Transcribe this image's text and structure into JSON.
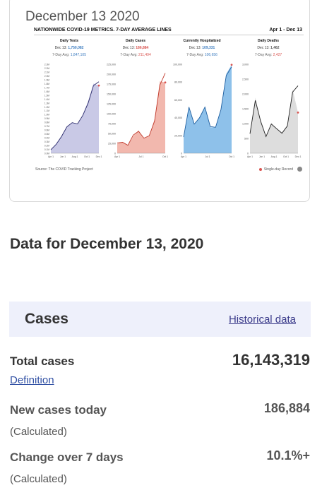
{
  "card": {
    "date_label": "December 13 2020",
    "figure": {
      "title": "NATIONWIDE COVID-19 METRICS. 7-DAY AVERAGE LINES",
      "range": "Apr 1 - Dec 13",
      "source": "Source: The COVID Tracking Project",
      "legend": "Single-day Record",
      "colors": {
        "tests": "#c9c9e6",
        "cases": "#f2b8ae",
        "hosp": "#8ec1ea",
        "deaths": "#dddddd",
        "record": "#d9534f"
      },
      "panels": [
        {
          "title": "Daily Tests",
          "date": "Dec 13:",
          "value": "1,750,082",
          "avg_label": "7-Day Avg:",
          "avg": "1,847,105"
        },
        {
          "title": "Daily Cases",
          "date": "Dec 13:",
          "value": "186,884",
          "avg_label": "7-Day Avg:",
          "avg": "211,494"
        },
        {
          "title": "Currently Hospitalized",
          "date": "Dec 13:",
          "value": "109,331",
          "avg_label": "7-Day Avg:",
          "avg": "106,656"
        },
        {
          "title": "Daily Deaths",
          "date": "Dec 13:",
          "value": "1,462",
          "avg_label": "7-Day Avg:",
          "avg": "2,427"
        }
      ]
    }
  },
  "chart_data": [
    {
      "type": "area",
      "title": "Daily Tests",
      "y_ticks": [
        "2.3M",
        "2.2M",
        "2.1M",
        "2.0M",
        "1.9M",
        "1.8M",
        "1.7M",
        "1.6M",
        "1.5M",
        "1.4M",
        "1.3M",
        "1.2M",
        "1.1M",
        "1.0M",
        "0.9M",
        "0.8M",
        "0.7M",
        "0.6M",
        "0.5M",
        "0.4M",
        "0.3M",
        "0.2M",
        "0.1M",
        "0.0M"
      ],
      "x_ticks": [
        "Apr 1",
        "Jun 1",
        "Aug 1",
        "Oct 1",
        "Dec 1"
      ],
      "ylim": [
        0,
        2300000
      ],
      "x": [
        "Apr 1",
        "May 1",
        "Jun 1",
        "Jul 1",
        "Aug 1",
        "Sep 1",
        "Oct 1",
        "Nov 1",
        "Dec 1",
        "Dec 13"
      ],
      "values": [
        100000,
        250000,
        450000,
        700000,
        800000,
        750000,
        1000000,
        1350000,
        1800000,
        1750082
      ],
      "avg": [
        90000,
        230000,
        430000,
        680000,
        790000,
        760000,
        980000,
        1300000,
        1750000,
        1847105
      ]
    },
    {
      "type": "area",
      "title": "Daily Cases",
      "y_ticks": [
        "225,000",
        "200,000",
        "175,000",
        "150,000",
        "125,000",
        "100,000",
        "75,000",
        "50,000",
        "25,000",
        "0"
      ],
      "x_ticks": [
        "Apr 1",
        "Jul 1",
        "Oct 1"
      ],
      "ylim": [
        0,
        235000
      ],
      "x": [
        "Apr 1",
        "May 1",
        "Jun 1",
        "Jul 1",
        "Aug 1",
        "Sep 1",
        "Oct 1",
        "Nov 1",
        "Dec 1",
        "Dec 13"
      ],
      "values": [
        25000,
        30000,
        20000,
        45000,
        60000,
        40000,
        45000,
        90000,
        190000,
        186884
      ],
      "avg": [
        27000,
        29000,
        21000,
        48000,
        58000,
        40000,
        46000,
        85000,
        180000,
        211494
      ]
    },
    {
      "type": "area",
      "title": "Currently Hospitalized",
      "y_ticks": [
        "100,000",
        "80,000",
        "60,000",
        "40,000",
        "20,000",
        "0"
      ],
      "x_ticks": [
        "Apr 1",
        "Jul 1",
        "Oct 1"
      ],
      "ylim": [
        0,
        110000
      ],
      "x": [
        "Apr 1",
        "May 1",
        "Jun 1",
        "Jul 1",
        "Aug 1",
        "Sep 1",
        "Oct 1",
        "Nov 1",
        "Dec 1",
        "Dec 13"
      ],
      "values": [
        20000,
        58000,
        35000,
        45000,
        58000,
        32000,
        32000,
        55000,
        98000,
        109331
      ],
      "avg": [
        20000,
        57000,
        36000,
        44000,
        57000,
        33000,
        32000,
        54000,
        96000,
        106656
      ]
    },
    {
      "type": "area",
      "title": "Daily Deaths",
      "y_ticks": [
        "3,000",
        "2,500",
        "2,000",
        "1,500",
        "1,000",
        "500",
        "0"
      ],
      "x_ticks": [
        "Apr 1",
        "Jun 1",
        "Aug 1",
        "Oct 1",
        "Dec 1"
      ],
      "ylim": [
        0,
        3200
      ],
      "x": [
        "Apr 1",
        "May 1",
        "Jun 1",
        "Jul 1",
        "Aug 1",
        "Sep 1",
        "Oct 1",
        "Nov 1",
        "Dec 1",
        "Dec 13"
      ],
      "values": [
        800,
        2000,
        1200,
        600,
        1100,
        900,
        750,
        1000,
        2300,
        1462
      ],
      "avg": [
        700,
        1900,
        1150,
        600,
        1050,
        880,
        720,
        980,
        2200,
        2427
      ]
    }
  ],
  "main": {
    "section_title": "Data for December 13, 2020",
    "cases_title": "Cases",
    "historical_link": "Historical data",
    "total_label": "Total cases",
    "total_value": "16,143,319",
    "definition_link": "Definition",
    "new_label": "New cases today",
    "new_value": "186,884",
    "new_note": "(Calculated)",
    "change_label": "Change over 7 days",
    "change_value": "10.1%+",
    "change_note": "(Calculated)"
  }
}
